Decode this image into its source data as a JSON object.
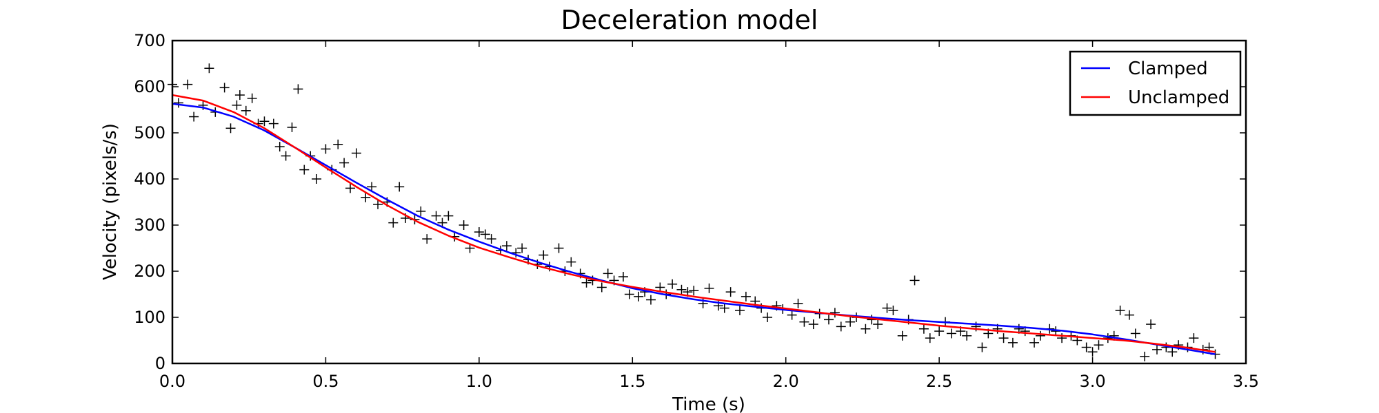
{
  "chart_data": {
    "type": "line",
    "title": "Deceleration model",
    "xlabel": "Time (s)",
    "ylabel": "Velocity (pixels/s)",
    "xlim": [
      0.0,
      3.5
    ],
    "ylim": [
      0,
      700
    ],
    "xticks": [
      "0.0",
      "0.5",
      "1.0",
      "1.5",
      "2.0",
      "2.5",
      "3.0",
      "3.5"
    ],
    "yticks": [
      "0",
      "100",
      "200",
      "300",
      "400",
      "500",
      "600",
      "700"
    ],
    "grid": false,
    "legend_position": "top-right",
    "series": [
      {
        "name": "Clamped",
        "kind": "line",
        "color": "#0000ff",
        "x": [
          0.0,
          0.1,
          0.2,
          0.3,
          0.4,
          0.5,
          0.6,
          0.7,
          0.8,
          0.9,
          1.0,
          1.1,
          1.2,
          1.3,
          1.4,
          1.5,
          1.6,
          1.7,
          1.8,
          1.9,
          2.0,
          2.1,
          2.2,
          2.3,
          2.4,
          2.5,
          2.6,
          2.7,
          2.8,
          2.9,
          3.0,
          3.1,
          3.2,
          3.3,
          3.4
        ],
        "y": [
          563,
          555,
          535,
          505,
          468,
          430,
          392,
          355,
          320,
          290,
          264,
          240,
          218,
          198,
          180,
          163,
          150,
          139,
          130,
          123,
          116,
          110,
          104,
          99,
          94,
          90,
          86,
          82,
          77,
          71,
          63,
          53,
          42,
          31,
          20
        ]
      },
      {
        "name": "Unclamped",
        "kind": "line",
        "color": "#ff0000",
        "x": [
          0.0,
          0.1,
          0.2,
          0.3,
          0.4,
          0.5,
          0.6,
          0.7,
          0.8,
          0.9,
          1.0,
          1.1,
          1.2,
          1.3,
          1.4,
          1.5,
          1.6,
          1.7,
          1.8,
          1.9,
          2.0,
          2.1,
          2.2,
          2.3,
          2.4,
          2.5,
          2.6,
          2.7,
          2.8,
          2.9,
          3.0,
          3.1,
          3.2,
          3.3,
          3.4
        ],
        "y": [
          582,
          570,
          545,
          510,
          468,
          425,
          383,
          343,
          307,
          277,
          251,
          230,
          210,
          193,
          178,
          166,
          155,
          145,
          136,
          127,
          119,
          111,
          103,
          96,
          89,
          82,
          76,
          70,
          65,
          60,
          55,
          50,
          43,
          35,
          25
        ]
      },
      {
        "kind": "scatter",
        "marker": "+",
        "color": "#000000",
        "x": [
          0.0,
          0.02,
          0.05,
          0.07,
          0.1,
          0.12,
          0.14,
          0.17,
          0.19,
          0.21,
          0.22,
          0.24,
          0.26,
          0.28,
          0.3,
          0.33,
          0.35,
          0.37,
          0.39,
          0.41,
          0.43,
          0.45,
          0.47,
          0.5,
          0.52,
          0.54,
          0.56,
          0.58,
          0.6,
          0.63,
          0.65,
          0.67,
          0.7,
          0.72,
          0.74,
          0.76,
          0.79,
          0.81,
          0.83,
          0.86,
          0.88,
          0.9,
          0.92,
          0.95,
          0.97,
          1.0,
          1.02,
          1.04,
          1.07,
          1.09,
          1.12,
          1.14,
          1.16,
          1.19,
          1.21,
          1.23,
          1.26,
          1.28,
          1.3,
          1.33,
          1.35,
          1.37,
          1.4,
          1.42,
          1.44,
          1.47,
          1.49,
          1.52,
          1.54,
          1.56,
          1.59,
          1.61,
          1.63,
          1.66,
          1.68,
          1.7,
          1.73,
          1.75,
          1.78,
          1.8,
          1.82,
          1.85,
          1.87,
          1.9,
          1.92,
          1.94,
          1.97,
          1.99,
          2.02,
          2.04,
          2.06,
          2.09,
          2.11,
          2.14,
          2.16,
          2.18,
          2.21,
          2.23,
          2.26,
          2.28,
          2.3,
          2.33,
          2.35,
          2.38,
          2.4,
          2.42,
          2.45,
          2.47,
          2.5,
          2.52,
          2.54,
          2.57,
          2.59,
          2.62,
          2.64,
          2.66,
          2.69,
          2.71,
          2.74,
          2.76,
          2.78,
          2.81,
          2.83,
          2.86,
          2.88,
          2.9,
          2.93,
          2.95,
          2.98,
          3.0,
          3.02,
          3.05,
          3.07,
          3.09,
          3.12,
          3.14,
          3.17,
          3.19,
          3.21,
          3.24,
          3.26,
          3.28,
          3.31,
          3.33,
          3.36,
          3.38,
          3.4
        ],
        "y": [
          605,
          565,
          605,
          535,
          560,
          640,
          545,
          598,
          510,
          560,
          582,
          548,
          575,
          520,
          525,
          520,
          470,
          450,
          512,
          595,
          420,
          450,
          400,
          465,
          420,
          475,
          435,
          380,
          456,
          360,
          383,
          345,
          350,
          305,
          383,
          315,
          312,
          330,
          270,
          320,
          305,
          320,
          275,
          300,
          250,
          285,
          280,
          270,
          245,
          255,
          240,
          250,
          225,
          215,
          235,
          210,
          250,
          200,
          220,
          195,
          175,
          180,
          165,
          195,
          180,
          188,
          150,
          145,
          155,
          138,
          165,
          150,
          172,
          160,
          155,
          158,
          130,
          163,
          125,
          120,
          155,
          115,
          145,
          135,
          120,
          100,
          125,
          118,
          105,
          130,
          90,
          85,
          108,
          95,
          110,
          80,
          90,
          100,
          75,
          95,
          85,
          120,
          115,
          60,
          95,
          180,
          75,
          55,
          70,
          90,
          65,
          70,
          60,
          80,
          35,
          65,
          75,
          55,
          45,
          75,
          70,
          45,
          60,
          75,
          70,
          55,
          60,
          50,
          35,
          25,
          40,
          55,
          60,
          115,
          105,
          65,
          15,
          85,
          30,
          35,
          25,
          40,
          35,
          55,
          30,
          35,
          20
        ]
      }
    ]
  }
}
